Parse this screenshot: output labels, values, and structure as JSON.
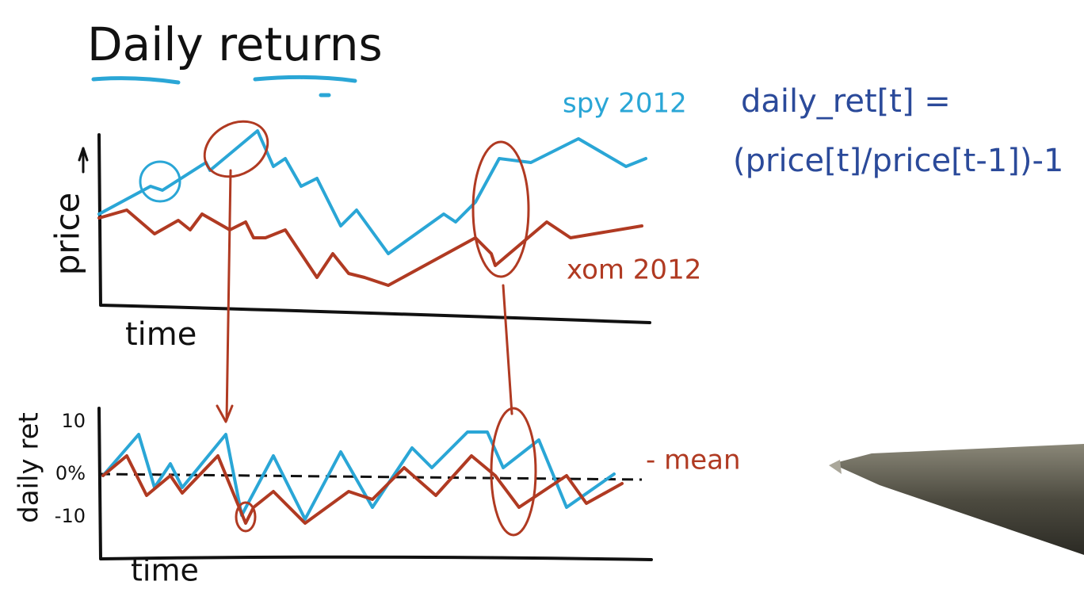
{
  "title": "Daily returns",
  "top_chart": {
    "y_label": "price",
    "x_label": "time",
    "series": [
      {
        "label": "spy 2012"
      },
      {
        "label": "xom 2012"
      }
    ]
  },
  "formula": {
    "lines": [
      "daily_ret[t] =",
      "(price[t]/price[t-1])-1"
    ]
  },
  "bottom_chart": {
    "y_label": "daily ret",
    "x_label": "time",
    "ticks": [
      "10",
      "0%",
      "-10"
    ],
    "mean_label": "- mean"
  }
}
